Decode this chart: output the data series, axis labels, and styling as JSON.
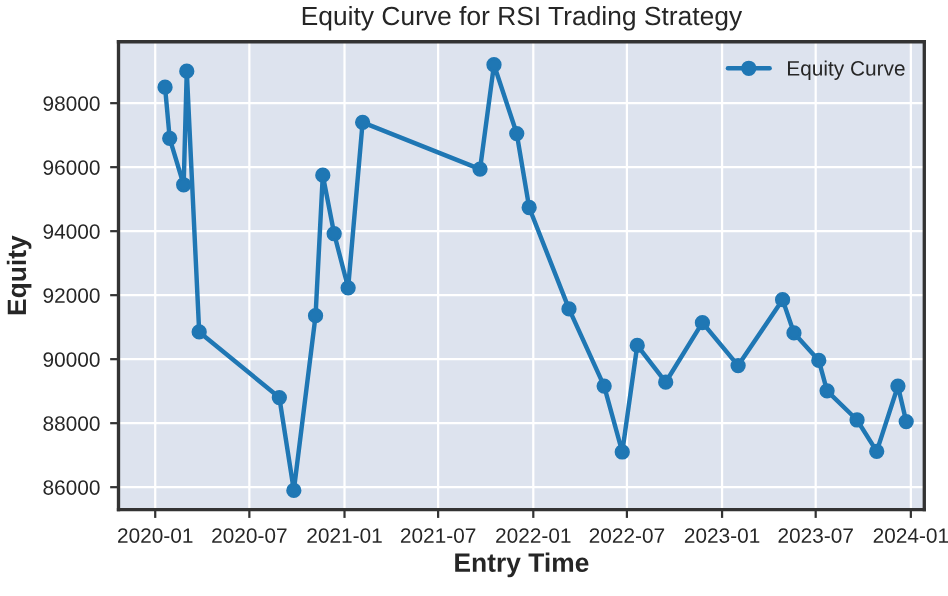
{
  "chart_data": {
    "type": "line",
    "title": "Equity Curve for RSI Trading Strategy",
    "xlabel": "Entry Time",
    "ylabel": "Equity",
    "x": [
      "2020-01-20",
      "2020-01-29",
      "2020-02-25",
      "2020-03-02",
      "2020-03-26",
      "2020-08-28",
      "2020-09-25",
      "2020-11-06",
      "2020-11-20",
      "2020-12-12",
      "2021-01-08",
      "2021-02-05",
      "2021-09-20",
      "2021-10-17",
      "2021-11-30",
      "2021-12-24",
      "2022-03-11",
      "2022-05-18",
      "2022-06-22",
      "2022-07-21",
      "2022-09-14",
      "2022-11-24",
      "2023-02-01",
      "2023-04-28",
      "2023-05-20",
      "2023-07-07",
      "2023-07-23",
      "2023-09-19",
      "2023-10-27",
      "2023-12-07",
      "2023-12-23"
    ],
    "series": [
      {
        "name": "Equity Curve",
        "color": "#1f77b4",
        "values": [
          98500,
          96900,
          95450,
          99000,
          90850,
          88800,
          85900,
          91360,
          95750,
          93920,
          92230,
          97400,
          95940,
          99200,
          97050,
          94740,
          91570,
          89160,
          87100,
          90430,
          89280,
          91140,
          89800,
          91860,
          90820,
          89960,
          89010,
          88100,
          87120,
          89160,
          88050
        ]
      }
    ],
    "xlim": [
      "2019-10-22",
      "2024-01-27"
    ],
    "xticks": [
      {
        "value": "2020-01-01",
        "label": "2020-01"
      },
      {
        "value": "2020-07-01",
        "label": "2020-07"
      },
      {
        "value": "2021-01-01",
        "label": "2021-01"
      },
      {
        "value": "2021-07-01",
        "label": "2021-07"
      },
      {
        "value": "2022-01-01",
        "label": "2022-01"
      },
      {
        "value": "2022-07-01",
        "label": "2022-07"
      },
      {
        "value": "2023-01-01",
        "label": "2023-01"
      },
      {
        "value": "2023-07-01",
        "label": "2023-07"
      },
      {
        "value": "2024-01-01",
        "label": "2024-01"
      }
    ],
    "ylim": [
      85300,
      99920
    ],
    "yticks": [
      86000,
      88000,
      90000,
      92000,
      94000,
      96000,
      98000
    ],
    "grid": true,
    "legend": "top right",
    "marker": "circle",
    "line_style": "solid"
  }
}
